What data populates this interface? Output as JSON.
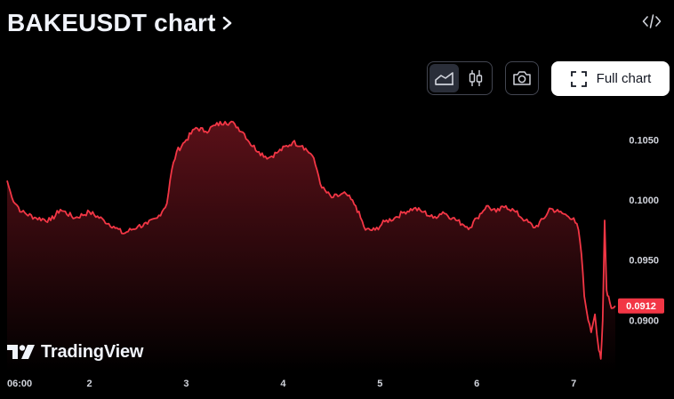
{
  "header": {
    "title": "BAKEUSDT chart",
    "chevron_icon": "chevron-right-icon",
    "embed_icon": "code-icon"
  },
  "toolbar": {
    "area_icon": "area-chart-icon",
    "candles_icon": "candlestick-icon",
    "snapshot_icon": "camera-icon",
    "fullscreen_icon": "fullscreen-corners-icon",
    "full_chart_label": "Full chart"
  },
  "branding": {
    "logo_text": "TradingView",
    "logo_icon": "tradingview-logo-icon"
  },
  "colors": {
    "background": "#000000",
    "line": "#f23645",
    "fill_top": "#5a1018",
    "badge": "#f23645"
  },
  "chart_data": {
    "type": "area",
    "title": "",
    "xlabel": "",
    "ylabel": "",
    "ylim": [
      0.08575,
      0.10775
    ],
    "y_ticks": [
      "0.1050",
      "0.1000",
      "0.0950",
      "0.0900"
    ],
    "x_ticks": [
      "06:00",
      "2",
      "3",
      "4",
      "5",
      "6",
      "7"
    ],
    "last_price_label": "0.0912",
    "grid": false,
    "series": [
      {
        "points": [
          [
            0.0,
            0.1016
          ],
          [
            0.05,
            0.1002
          ],
          [
            0.15,
            0.099
          ],
          [
            0.3,
            0.0985
          ],
          [
            0.45,
            0.0983
          ],
          [
            0.55,
            0.0992
          ],
          [
            0.7,
            0.0985
          ],
          [
            0.85,
            0.099
          ],
          [
            1.0,
            0.0983
          ],
          [
            1.1,
            0.0978
          ],
          [
            1.2,
            0.0972
          ],
          [
            1.35,
            0.0978
          ],
          [
            1.45,
            0.098
          ],
          [
            1.55,
            0.0985
          ],
          [
            1.65,
            0.0997
          ],
          [
            1.7,
            0.1025
          ],
          [
            1.75,
            0.104
          ],
          [
            1.85,
            0.105
          ],
          [
            1.95,
            0.106
          ],
          [
            2.05,
            0.1057
          ],
          [
            2.15,
            0.1062
          ],
          [
            2.25,
            0.1065
          ],
          [
            2.35,
            0.1063
          ],
          [
            2.45,
            0.1055
          ],
          [
            2.5,
            0.1048
          ],
          [
            2.6,
            0.104
          ],
          [
            2.7,
            0.1035
          ],
          [
            2.8,
            0.104
          ],
          [
            2.95,
            0.1048
          ],
          [
            3.05,
            0.1045
          ],
          [
            3.15,
            0.1037
          ],
          [
            3.2,
            0.1025
          ],
          [
            3.25,
            0.101
          ],
          [
            3.35,
            0.1002
          ],
          [
            3.5,
            0.1005
          ],
          [
            3.6,
            0.0995
          ],
          [
            3.7,
            0.0975
          ],
          [
            3.8,
            0.0975
          ],
          [
            3.9,
            0.0982
          ],
          [
            4.0,
            0.0985
          ],
          [
            4.1,
            0.099
          ],
          [
            4.2,
            0.0993
          ],
          [
            4.3,
            0.099
          ],
          [
            4.4,
            0.0985
          ],
          [
            4.5,
            0.099
          ],
          [
            4.6,
            0.0985
          ],
          [
            4.7,
            0.098
          ],
          [
            4.78,
            0.0977
          ],
          [
            4.85,
            0.0985
          ],
          [
            4.95,
            0.0995
          ],
          [
            5.05,
            0.099
          ],
          [
            5.15,
            0.0995
          ],
          [
            5.25,
            0.099
          ],
          [
            5.35,
            0.0983
          ],
          [
            5.45,
            0.0977
          ],
          [
            5.55,
            0.0985
          ],
          [
            5.6,
            0.0993
          ],
          [
            5.7,
            0.099
          ],
          [
            5.78,
            0.0987
          ],
          [
            5.85,
            0.0985
          ],
          [
            5.9,
            0.0975
          ],
          [
            5.93,
            0.0955
          ],
          [
            5.96,
            0.092
          ],
          [
            6.0,
            0.09
          ],
          [
            6.03,
            0.089
          ],
          [
            6.07,
            0.0905
          ],
          [
            6.11,
            0.0875
          ],
          [
            6.13,
            0.0868
          ],
          [
            6.15,
            0.09
          ],
          [
            6.17,
            0.0983
          ],
          [
            6.19,
            0.0925
          ],
          [
            6.21,
            0.092
          ],
          [
            6.24,
            0.091
          ],
          [
            6.28,
            0.0912
          ]
        ]
      }
    ]
  }
}
